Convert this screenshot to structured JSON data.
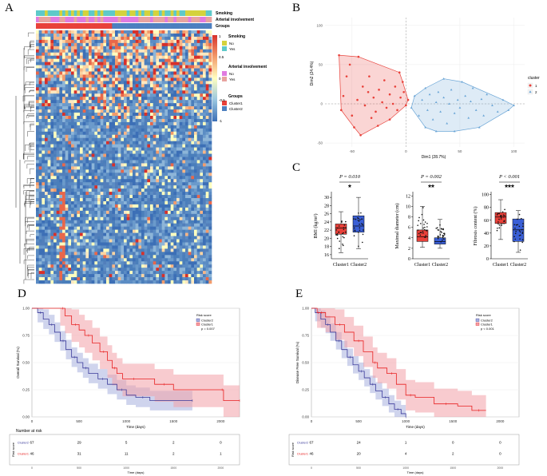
{
  "panels": {
    "a": {
      "letter": "A"
    },
    "b": {
      "letter": "B"
    },
    "c": {
      "letter": "C"
    },
    "d": {
      "letter": "D"
    },
    "e": {
      "letter": "E"
    }
  },
  "heatmap": {
    "annotation_rows": [
      "Smoking",
      "Arterial involvement",
      "Groups"
    ],
    "legend": {
      "smoking_title": "Smoking",
      "smoking_levels": [
        "No",
        "Yes"
      ],
      "arterial_title": "Arterial involvement",
      "arterial_levels": [
        "No",
        "Yes"
      ],
      "groups_title": "Groups",
      "groups_levels": [
        "Cluster1",
        "Cluster2"
      ],
      "scale_ticks": [
        "1",
        "0.5",
        "0",
        "-0.5",
        "-1"
      ]
    },
    "colors": {
      "smoking_no": "#d4d23c",
      "smoking_yes": "#5ec9c9",
      "arterial_no": "#e07be0",
      "arterial_yes": "#e8a3a0",
      "cluster1": "#e8413a",
      "cluster2": "#4d7fbf"
    }
  },
  "chart_data": [
    {
      "id": "B",
      "type": "scatter",
      "xlabel": "Dim1 (28.7%)",
      "ylabel": "Dim2 (24.4%)",
      "x_ticks": [
        "-50",
        "0",
        "50",
        "100"
      ],
      "y_ticks": [
        "100",
        "50",
        "0",
        "-50"
      ],
      "legend_title": "cluster",
      "series": [
        {
          "name": "1",
          "color": "#e8413a",
          "points": [
            [
              -62,
              62
            ],
            [
              -55,
              35
            ],
            [
              -58,
              10
            ],
            [
              -50,
              -15
            ],
            [
              -45,
              5
            ],
            [
              -40,
              22
            ],
            [
              -38,
              -2
            ],
            [
              -35,
              15
            ],
            [
              -30,
              8
            ],
            [
              -28,
              -10
            ],
            [
              -25,
              18
            ],
            [
              -22,
              2
            ],
            [
              -20,
              30
            ],
            [
              -18,
              -5
            ],
            [
              -15,
              12
            ],
            [
              -12,
              0
            ],
            [
              -10,
              22
            ],
            [
              -8,
              -8
            ],
            [
              -5,
              8
            ],
            [
              -2,
              15
            ],
            [
              0,
              -2
            ],
            [
              2,
              5
            ],
            [
              -48,
              -30
            ],
            [
              -42,
              -40
            ],
            [
              -32,
              -18
            ],
            [
              -26,
              -28
            ],
            [
              -15,
              -20
            ],
            [
              -60,
              -8
            ],
            [
              -52,
              50
            ],
            [
              -6,
              40
            ],
            [
              -3,
              28
            ],
            [
              -34,
              35
            ],
            [
              -44,
              60
            ]
          ]
        },
        {
          "name": "2",
          "color": "#6aa5d6",
          "points": [
            [
              5,
              -5
            ],
            [
              8,
              10
            ],
            [
              12,
              -15
            ],
            [
              15,
              5
            ],
            [
              18,
              20
            ],
            [
              20,
              -8
            ],
            [
              22,
              12
            ],
            [
              25,
              -20
            ],
            [
              28,
              2
            ],
            [
              30,
              15
            ],
            [
              32,
              -10
            ],
            [
              35,
              8
            ],
            [
              38,
              -25
            ],
            [
              40,
              0
            ],
            [
              42,
              18
            ],
            [
              45,
              -12
            ],
            [
              48,
              5
            ],
            [
              50,
              -5
            ],
            [
              55,
              10
            ],
            [
              58,
              -18
            ],
            [
              60,
              3
            ],
            [
              62,
              20
            ],
            [
              65,
              -8
            ],
            [
              70,
              6
            ],
            [
              72,
              -15
            ],
            [
              75,
              12
            ],
            [
              80,
              -2
            ],
            [
              85,
              -10
            ],
            [
              90,
              5
            ],
            [
              95,
              -8
            ],
            [
              100,
              -2
            ],
            [
              52,
              28
            ],
            [
              35,
              32
            ],
            [
              18,
              -30
            ],
            [
              45,
              -35
            ],
            [
              68,
              -30
            ],
            [
              28,
              -35
            ]
          ]
        }
      ]
    },
    {
      "id": "C1",
      "type": "box",
      "pvalue": "P = 0.010",
      "sig": "*",
      "ylabel": "BMI (kg/m²)",
      "y_ticks": [
        16,
        18,
        20,
        22,
        24,
        26,
        28,
        30
      ],
      "ylim": [
        15,
        31
      ],
      "categories": [
        "Cluster1",
        "Cluster2"
      ],
      "boxes": [
        {
          "name": "Cluster1",
          "color": "#e8413a",
          "min": 16.5,
          "q1": 21.0,
          "median": 22.5,
          "q3": 23.5,
          "max": 26.5
        },
        {
          "name": "Cluster2",
          "color": "#3a5fd6",
          "min": 17.5,
          "q1": 21.5,
          "median": 23.0,
          "q3": 25.5,
          "max": 30.0
        }
      ]
    },
    {
      "id": "C2",
      "type": "box",
      "pvalue": "P = 0.002",
      "sig": "**",
      "ylabel": "Maximal diameter (cm)",
      "y_ticks": [
        0,
        2,
        4,
        6,
        8,
        10,
        12
      ],
      "ylim": [
        0,
        12.5
      ],
      "categories": [
        "Cluster1",
        "Cluster2"
      ],
      "boxes": [
        {
          "name": "Cluster1",
          "color": "#e8413a",
          "min": 2.2,
          "q1": 3.3,
          "median": 4.2,
          "q3": 5.5,
          "max": 10.0
        },
        {
          "name": "Cluster2",
          "color": "#3a5fd6",
          "min": 2.0,
          "q1": 2.8,
          "median": 3.3,
          "q3": 4.0,
          "max": 7.5
        }
      ]
    },
    {
      "id": "C3",
      "type": "box",
      "pvalue": "P < 0.001",
      "sig": "***",
      "ylabel": "Fibrosis content (%)",
      "y_ticks": [
        0,
        20,
        40,
        60,
        80,
        100
      ],
      "ylim": [
        0,
        102
      ],
      "categories": [
        "Cluster1",
        "Cluster2"
      ],
      "boxes": [
        {
          "name": "Cluster1",
          "color": "#e8413a",
          "min": 30,
          "q1": 55,
          "median": 65,
          "q3": 72,
          "max": 92
        },
        {
          "name": "Cluster2",
          "color": "#3a5fd6",
          "min": 10,
          "q1": 27,
          "median": 45,
          "q3": 62,
          "max": 75
        }
      ]
    },
    {
      "id": "D",
      "type": "line",
      "ylabel": "Overall Survival (%)",
      "xlabel": "Time (days)",
      "x_ticks": [
        0,
        500,
        1000,
        1500,
        2000
      ],
      "y_ticks": [
        "1.00",
        "0.75",
        "0.50",
        "0.25",
        "0.00"
      ],
      "xlim": [
        0,
        2200
      ],
      "legend_title": "Risk score",
      "pvalue_text": "p = 0.007",
      "series": [
        {
          "name": "Cluster2",
          "color": "#3a3a9a",
          "band": "#a8b0de",
          "steps": [
            [
              0,
              1.0
            ],
            [
              60,
              0.96
            ],
            [
              120,
              0.9
            ],
            [
              180,
              0.85
            ],
            [
              240,
              0.78
            ],
            [
              300,
              0.7
            ],
            [
              360,
              0.62
            ],
            [
              420,
              0.55
            ],
            [
              480,
              0.5
            ],
            [
              540,
              0.45
            ],
            [
              600,
              0.4
            ],
            [
              700,
              0.35
            ],
            [
              800,
              0.3
            ],
            [
              900,
              0.25
            ],
            [
              1000,
              0.2
            ],
            [
              1100,
              0.18
            ],
            [
              1250,
              0.15
            ],
            [
              1700,
              0.15
            ]
          ],
          "low_offset": 0.09,
          "high_offset": 0.09
        },
        {
          "name": "Cluster1",
          "color": "#e82020",
          "band": "#f2a0a8",
          "steps": [
            [
              0,
              1.0
            ],
            [
              300,
              1.0
            ],
            [
              350,
              0.93
            ],
            [
              420,
              0.85
            ],
            [
              500,
              0.8
            ],
            [
              560,
              0.75
            ],
            [
              640,
              0.68
            ],
            [
              720,
              0.6
            ],
            [
              800,
              0.52
            ],
            [
              850,
              0.45
            ],
            [
              900,
              0.4
            ],
            [
              960,
              0.35
            ],
            [
              1200,
              0.35
            ],
            [
              1300,
              0.3
            ],
            [
              1500,
              0.25
            ],
            [
              2000,
              0.25
            ],
            [
              2030,
              0.15
            ],
            [
              2200,
              0.15
            ]
          ],
          "low_offset": 0.16,
          "high_offset": 0.14
        }
      ],
      "risk_table": {
        "title": "Number at risk",
        "row_title": "Risk score",
        "rows": [
          {
            "name": "Cluster2",
            "counts": [
              "67",
              "29",
              "5",
              "2",
              "0"
            ]
          },
          {
            "name": "Cluster1",
            "counts": [
              "46",
              "31",
              "11",
              "2",
              "1"
            ]
          }
        ],
        "xlabel": "Time (days)"
      }
    },
    {
      "id": "E",
      "type": "line",
      "ylabel": "Disease Free Survival (%)",
      "xlabel": "Time (days)",
      "x_ticks": [
        0,
        500,
        1000,
        1500,
        2000
      ],
      "y_ticks": [
        "1.00",
        "0.75",
        "0.50",
        "0.25",
        "0.00"
      ],
      "xlim": [
        0,
        2200
      ],
      "legend_title": "Risk score",
      "pvalue_text": "p < 0.001",
      "series": [
        {
          "name": "Cluster2",
          "color": "#3a3a9a",
          "band": "#a8b0de",
          "steps": [
            [
              0,
              1.0
            ],
            [
              40,
              0.96
            ],
            [
              100,
              0.9
            ],
            [
              150,
              0.85
            ],
            [
              200,
              0.78
            ],
            [
              260,
              0.7
            ],
            [
              320,
              0.62
            ],
            [
              380,
              0.55
            ],
            [
              440,
              0.48
            ],
            [
              500,
              0.42
            ],
            [
              560,
              0.36
            ],
            [
              620,
              0.3
            ],
            [
              680,
              0.24
            ],
            [
              750,
              0.18
            ],
            [
              820,
              0.12
            ],
            [
              880,
              0.07
            ],
            [
              950,
              0.03
            ],
            [
              1000,
              0.0
            ]
          ],
          "low_offset": 0.08,
          "high_offset": 0.08
        },
        {
          "name": "Cluster1",
          "color": "#e82020",
          "band": "#f2a0a8",
          "steps": [
            [
              0,
              1.0
            ],
            [
              60,
              0.96
            ],
            [
              150,
              0.92
            ],
            [
              250,
              0.85
            ],
            [
              350,
              0.78
            ],
            [
              450,
              0.7
            ],
            [
              550,
              0.6
            ],
            [
              650,
              0.5
            ],
            [
              700,
              0.45
            ],
            [
              800,
              0.4
            ],
            [
              900,
              0.3
            ],
            [
              1000,
              0.2
            ],
            [
              1100,
              0.18
            ],
            [
              1300,
              0.12
            ],
            [
              1550,
              0.1
            ],
            [
              1700,
              0.06
            ],
            [
              1850,
              0.06
            ]
          ],
          "low_offset": 0.14,
          "high_offset": 0.14
        }
      ],
      "risk_table": {
        "title": "",
        "row_title": "Risk score",
        "rows": [
          {
            "name": "Cluster2",
            "counts": [
              "67",
              "24",
              "1",
              "0",
              "0"
            ]
          },
          {
            "name": "Cluster1",
            "counts": [
              "46",
              "20",
              "4",
              "2",
              "0"
            ]
          }
        ],
        "xlabel": "Time (days)"
      }
    }
  ]
}
